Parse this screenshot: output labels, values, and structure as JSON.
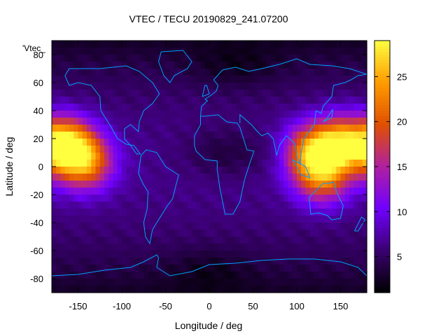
{
  "chart_data": {
    "type": "heatmap",
    "title": "VTEC / TECU 20190829_241.07200",
    "xlabel": "Longitude / deg",
    "ylabel": "Latitude / deg",
    "xlim": [
      -180,
      180
    ],
    "ylim": [
      -90,
      90
    ],
    "x_ticks": [
      -150,
      -100,
      -50,
      0,
      50,
      100,
      150
    ],
    "y_ticks": [
      -80,
      -60,
      -40,
      -20,
      0,
      20,
      40,
      60,
      80
    ],
    "colorbar": {
      "label": "",
      "range": [
        1,
        29
      ],
      "ticks": [
        5,
        10,
        15,
        20,
        25
      ]
    },
    "colormap": [
      "#000000",
      "#3a0070",
      "#7000ff",
      "#b020a0",
      "#e05000",
      "#ff9b00",
      "#ffff40"
    ],
    "key_label": "'Vtec_",
    "contour_color": "#00a0ff",
    "grid": false,
    "field_model": {
      "background_tecu": 6.5,
      "polar_low_tecu": 2.5,
      "equatorial_peaks": [
        {
          "lon": -165,
          "lat": 15,
          "tecu": 28
        },
        {
          "lon": -140,
          "lat": 3,
          "tecu": 21
        },
        {
          "lon": 150,
          "lat": 16,
          "tecu": 24
        },
        {
          "lon": 115,
          "lat": 10,
          "tecu": 22
        },
        {
          "lon": 130,
          "lat": -8,
          "tecu": 19
        }
      ],
      "minimum_regions": [
        {
          "lon": 30,
          "lat": 75,
          "tecu": 1.5
        },
        {
          "lon": 20,
          "lat": 10,
          "tecu": 3
        },
        {
          "lon": 0,
          "lat": -78,
          "tecu": 1.5
        }
      ]
    }
  }
}
